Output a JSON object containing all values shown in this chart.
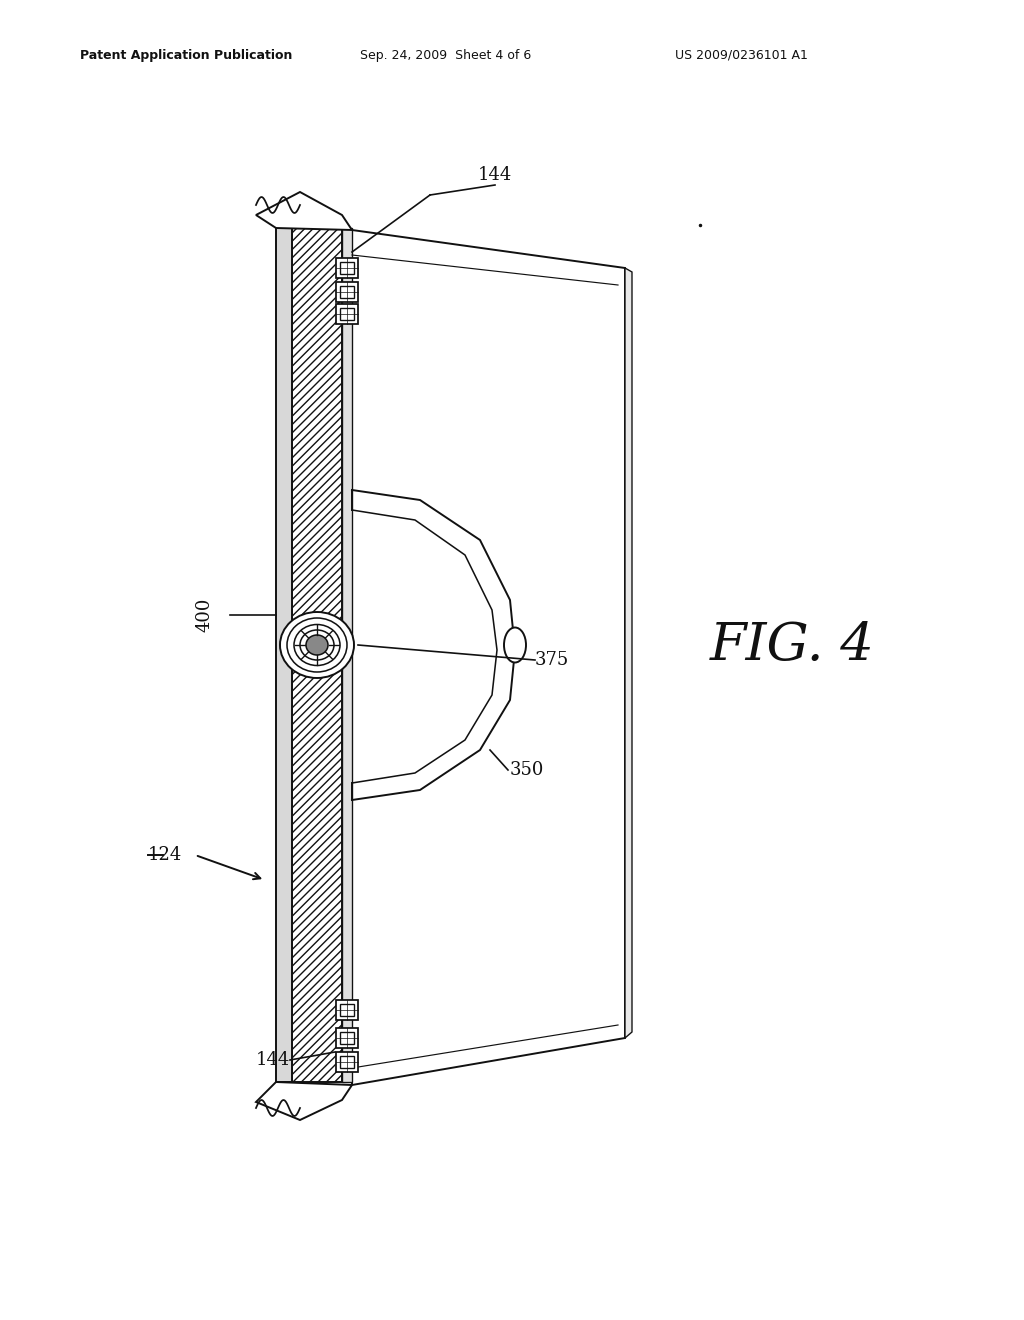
{
  "background_color": "#ffffff",
  "header_left": "Patent Application Publication",
  "header_mid": "Sep. 24, 2009  Sheet 4 of 6",
  "header_right": "US 2009/0236101 A1",
  "fig_label": "FIG. 4",
  "label_144_top": "144",
  "label_144_bot": "144",
  "label_400": "400",
  "label_375": "375",
  "label_350": "350",
  "label_124": "124",
  "lw": 1.4,
  "text_color": "#111111",
  "line_color": "#111111"
}
